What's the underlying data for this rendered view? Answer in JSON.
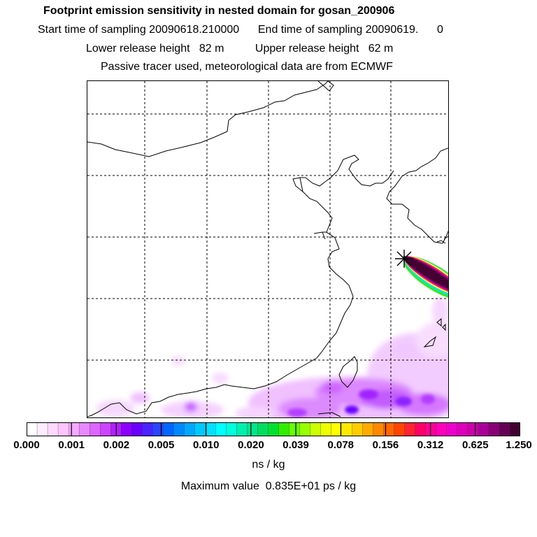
{
  "titles": {
    "line1": "Footprint emission sensitivity in nested domain for gosan_200906",
    "line2": "Start time of sampling 20090618.210000      End time of sampling 20090619.      0",
    "line3": "Lower release height   82 m          Upper release height   62 m",
    "line4": "Passive tracer used, meteorological data are from ECMWF"
  },
  "colorbar": {
    "tick_labels": [
      "0.000",
      "0.001",
      "0.002",
      "0.005",
      "0.010",
      "0.020",
      "0.039",
      "0.078",
      "0.156",
      "0.312",
      "0.625",
      "1.250"
    ],
    "colors": [
      "#ffffff",
      "#ffecff",
      "#ffd8ff",
      "#ffc4ff",
      "#f5a8ff",
      "#e888ff",
      "#dc66ff",
      "#cc44ff",
      "#b21eff",
      "#8c00ff",
      "#6a00ff",
      "#4a22ff",
      "#2a44ff",
      "#0066ff",
      "#0088ff",
      "#00a8ff",
      "#00c8ff",
      "#00e0ff",
      "#00ffff",
      "#00ffdd",
      "#00f0b0",
      "#00e58a",
      "#00dd60",
      "#00e030",
      "#33ee00",
      "#66ff00",
      "#99ff00",
      "#ccff00",
      "#eeff00",
      "#ffff00",
      "#ffe800",
      "#ffcc00",
      "#ffaa00",
      "#ff8800",
      "#ff6600",
      "#ff4400",
      "#ff2233",
      "#ff0066",
      "#ff0099",
      "#ff00bb",
      "#ee00cc",
      "#dd00bb",
      "#cc00aa",
      "#aa0099",
      "#880077",
      "#660055",
      "#440033"
    ],
    "units": "ns / kg",
    "max_value_text": "Maximum value  0.835E+01 ps / kg"
  },
  "map": {
    "grid_style": "dashed",
    "release_marker": "asterisk-star"
  }
}
